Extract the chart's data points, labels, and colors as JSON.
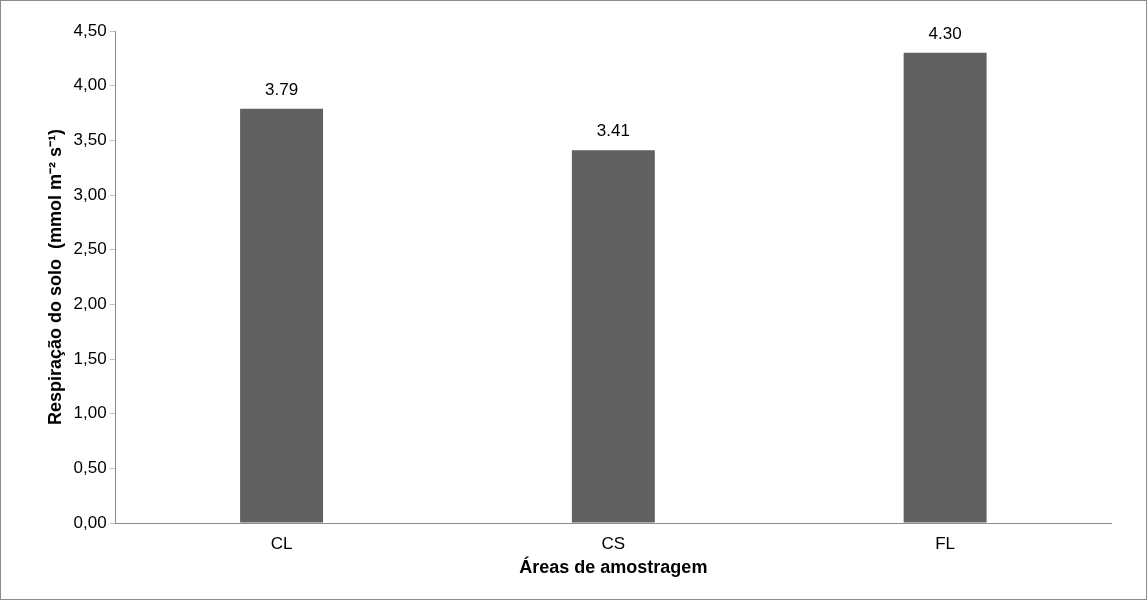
{
  "chart_data": {
    "type": "bar",
    "xlabel": "Áreas de amostragem",
    "ylabel": "Respiração do solo  (mmol m⁻² s⁻¹)",
    "categories": [
      "CL",
      "CS",
      "FL"
    ],
    "values": [
      3.79,
      3.41,
      4.3
    ],
    "value_labels": [
      "3.79",
      "3.41",
      "4.30"
    ],
    "color": "#616161",
    "ylim": [
      0,
      4.5
    ],
    "yticks": [
      {
        "value": 0,
        "label": "0,00"
      },
      {
        "value": 0.5,
        "label": "0,50"
      },
      {
        "value": 1,
        "label": "1,00"
      },
      {
        "value": 1.5,
        "label": "1,50"
      },
      {
        "value": 2,
        "label": "2,00"
      },
      {
        "value": 2.5,
        "label": "2,50"
      },
      {
        "value": 3,
        "label": "3,00"
      },
      {
        "value": 3.5,
        "label": "3,50"
      },
      {
        "value": 4,
        "label": "4,00"
      },
      {
        "value": 4.5,
        "label": "4,50"
      }
    ],
    "grid": false,
    "legend": false
  }
}
